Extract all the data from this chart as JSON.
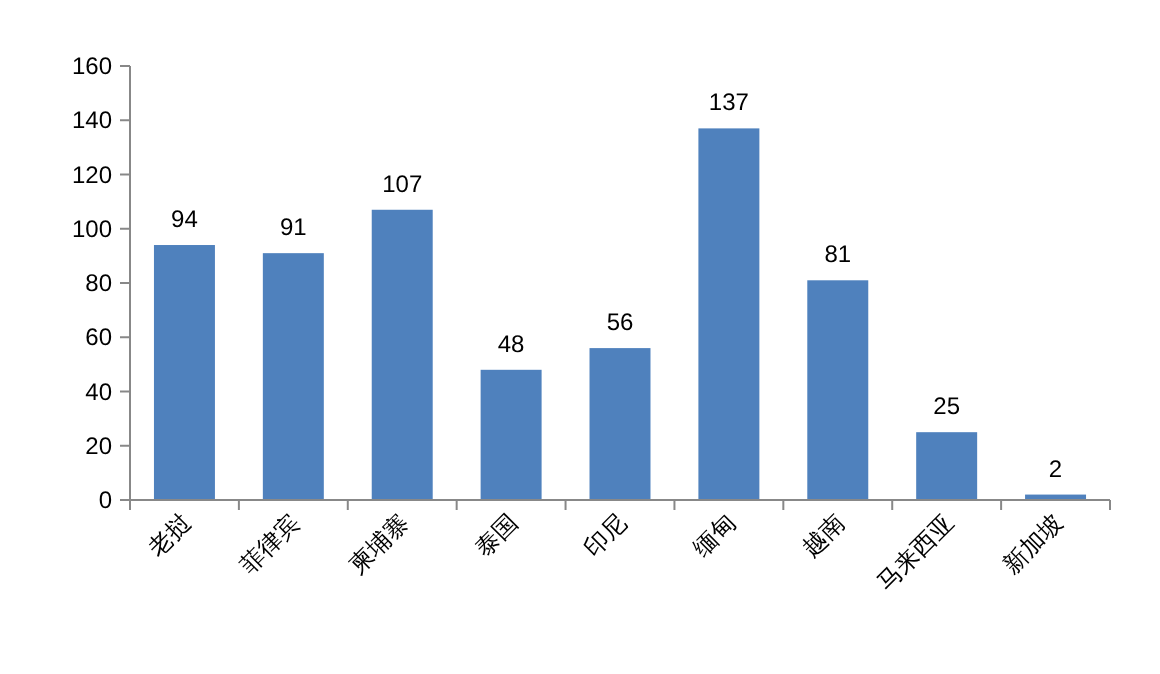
{
  "chart_data": {
    "type": "bar",
    "categories": [
      "老挝",
      "菲律宾",
      "柬埔寨",
      "泰国",
      "印尼",
      "缅甸",
      "越南",
      "马来西亚",
      "新加坡"
    ],
    "values": [
      94,
      91,
      107,
      48,
      56,
      137,
      81,
      25,
      2
    ],
    "color": "#4f81bd",
    "ylim": [
      0,
      160
    ],
    "yticks": [
      0,
      20,
      40,
      60,
      80,
      100,
      120,
      140,
      160
    ],
    "data_labels": true
  }
}
